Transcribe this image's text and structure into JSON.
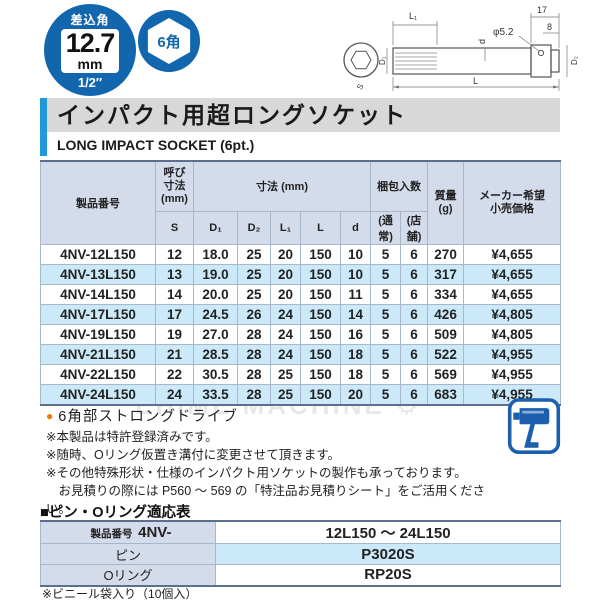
{
  "drive_badge": {
    "top": "差込角",
    "value": "12.7",
    "unit": "mm",
    "fraction": "1/2″"
  },
  "hex_badge": {
    "label": "6角"
  },
  "drawing_labels": {
    "l1": "L₁",
    "seventeen": "17",
    "eight": "8",
    "phi": "φ5.2",
    "d": "d",
    "L": "L",
    "d1": "D₁",
    "d2": "D₂",
    "s": "S"
  },
  "header": {
    "title": "インパクト用超ロングソケット",
    "subtitle": "LONG IMPACT SOCKET (6pt.)"
  },
  "main_table": {
    "col_product": "製品番号",
    "col_nominal": "呼び\n寸法\n(mm)",
    "col_dims": "寸法 (mm)",
    "col_pack": "梱包入数",
    "col_mass": "質量\n(g)",
    "col_price": "メーカー希望\n小売価格",
    "sub_headers": [
      "S",
      "D₁",
      "D₂",
      "L₁",
      "L",
      "d",
      "(通常)",
      "(店舗)"
    ],
    "rows": [
      [
        "4NV-12L150",
        "12",
        "18.0",
        "25",
        "20",
        "150",
        "10",
        "5",
        "6",
        "270",
        "¥4,655"
      ],
      [
        "4NV-13L150",
        "13",
        "19.0",
        "25",
        "20",
        "150",
        "10",
        "5",
        "6",
        "317",
        "¥4,655"
      ],
      [
        "4NV-14L150",
        "14",
        "20.0",
        "25",
        "20",
        "150",
        "11",
        "5",
        "6",
        "334",
        "¥4,655"
      ],
      [
        "4NV-17L150",
        "17",
        "24.5",
        "26",
        "24",
        "150",
        "14",
        "5",
        "6",
        "426",
        "¥4,805"
      ],
      [
        "4NV-19L150",
        "19",
        "27.0",
        "28",
        "24",
        "150",
        "16",
        "5",
        "6",
        "509",
        "¥4,805"
      ],
      [
        "4NV-21L150",
        "21",
        "28.5",
        "28",
        "24",
        "150",
        "18",
        "5",
        "6",
        "522",
        "¥4,955"
      ],
      [
        "4NV-22L150",
        "22",
        "30.5",
        "28",
        "25",
        "150",
        "18",
        "5",
        "6",
        "569",
        "¥4,955"
      ],
      [
        "4NV-24L150",
        "24",
        "33.5",
        "28",
        "25",
        "150",
        "20",
        "5",
        "6",
        "683",
        "¥4,955"
      ]
    ]
  },
  "feature": {
    "bullet": "●",
    "label": "6角部ストロングドライブ"
  },
  "notes": [
    "※本製品は特許登録済みです。",
    "※随時、Oリング仮置き溝付に変更させて頂きます。",
    "※その他特殊形状・仕様のインパクト用ソケットの製作も承っております。",
    "　お見積りの際には P560 〜 569 の「特注品お見積りシート」をご活用ください。"
  ],
  "watermark": "EHIME MACHINE ⚙",
  "pin_table": {
    "heading": "■ピン・Oリング適応表",
    "row1_label_small": "製品番号",
    "row1_label_big": "4NV-",
    "row1_value": "12L150 〜 24L150",
    "row2_label": "ピン",
    "row2_value": "P3020S",
    "row3_label": "Oリング",
    "row3_value": "RP20S"
  },
  "footer_note": "※ビニール袋入り（10個入）",
  "colors": {
    "badge_blue": "#1266ad",
    "accent_blue": "#2398d6",
    "header_bg": "#d4dbeb",
    "alt_row": "#cbe9f8",
    "bullet_orange": "#ef7a00"
  }
}
